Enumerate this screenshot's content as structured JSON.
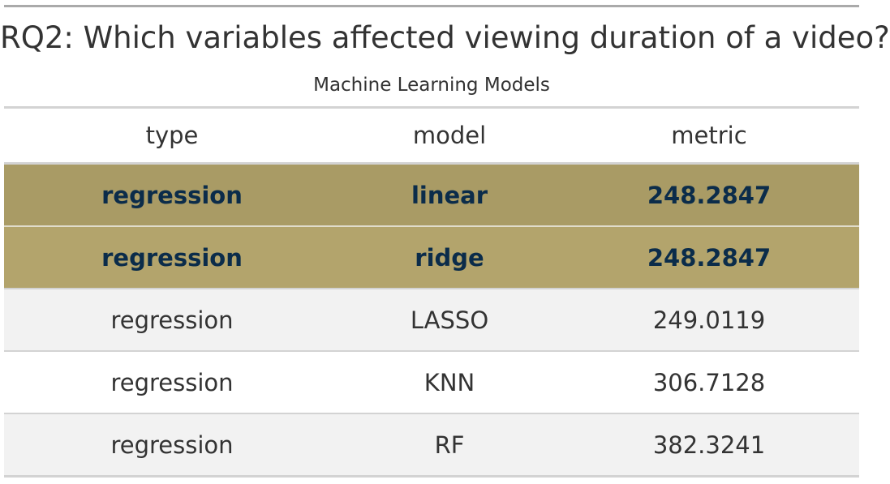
{
  "table": {
    "title": "RQ2: Which variables affected viewing duration of a video?",
    "subtitle": "Machine Learning Models",
    "columns": [
      "type",
      "model",
      "metric"
    ],
    "rows": [
      {
        "type": "regression",
        "model": "linear",
        "metric": "248.2847",
        "highlighted": true
      },
      {
        "type": "regression",
        "model": "ridge",
        "metric": "248.2847",
        "highlighted": true
      },
      {
        "type": "regression",
        "model": "LASSO",
        "metric": "249.0119",
        "highlighted": false
      },
      {
        "type": "regression",
        "model": "KNN",
        "metric": "306.7128",
        "highlighted": false
      },
      {
        "type": "regression",
        "model": "RF",
        "metric": "382.3241",
        "highlighted": false
      }
    ],
    "colors": {
      "highlight_fill": "#a99b65",
      "highlight_text": "#0b2c4a",
      "stripe_fill": "#f2f2f2",
      "text": "#333333"
    }
  }
}
